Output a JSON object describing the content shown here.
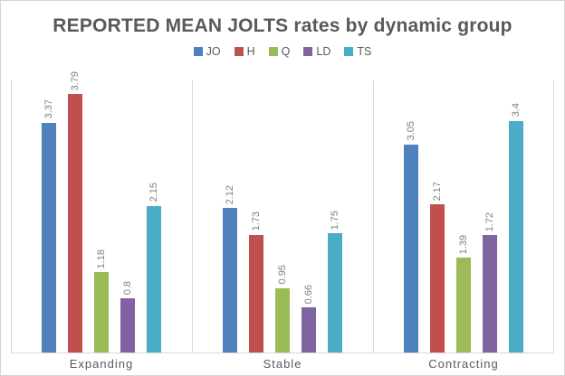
{
  "title": "REPORTED MEAN JOLTS rates by dynamic group",
  "chart_data": {
    "type": "bar",
    "title": "REPORTED MEAN JOLTS rates by dynamic group",
    "categories": [
      "Expanding",
      "Stable",
      "Contracting"
    ],
    "series": [
      {
        "name": "JO",
        "color": "#4F81BD",
        "values": [
          3.37,
          2.12,
          3.05
        ],
        "labels": [
          "3.37",
          "2.12",
          "3.05"
        ]
      },
      {
        "name": "H",
        "color": "#C0504D",
        "values": [
          3.79,
          1.73,
          2.17
        ],
        "labels": [
          "3.79",
          "1.73",
          "2.17"
        ]
      },
      {
        "name": "Q",
        "color": "#9BBB59",
        "values": [
          1.18,
          0.95,
          1.39
        ],
        "labels": [
          "1.18",
          "0.95",
          "1.39"
        ]
      },
      {
        "name": "LD",
        "color": "#8064A2",
        "values": [
          0.8,
          0.66,
          1.72
        ],
        "labels": [
          "0.8",
          "0.66",
          "1.72"
        ]
      },
      {
        "name": "TS",
        "color": "#4BACC6",
        "values": [
          2.15,
          1.75,
          3.4
        ],
        "labels": [
          "2.15",
          "1.75",
          "3.4"
        ]
      }
    ],
    "xlabel": "",
    "ylabel": "",
    "ylim": [
      0,
      4
    ],
    "value_labels": true,
    "value_label_rotation": 90,
    "legend_position": "top",
    "grid": "vertical category separators only",
    "colors": {
      "title_text": "#595959",
      "category_text": "#595959",
      "value_label_text": "#7f7f7f",
      "gridline": "#d9d9d9",
      "background": "#ffffff",
      "border": "#d6d6d6"
    }
  }
}
